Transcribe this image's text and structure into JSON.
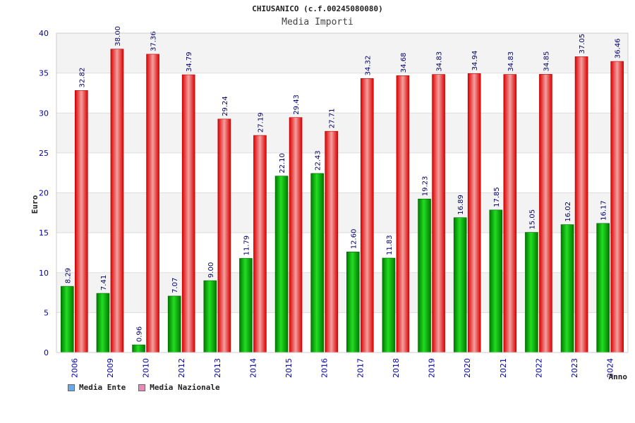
{
  "chart_data": {
    "type": "bar",
    "title": "CHIUSANICO (c.f.00245080080)",
    "subtitle": "Media Importi",
    "ylabel": "Euro",
    "xlabel": "Anno",
    "ylim": [
      0,
      40
    ],
    "yticks": [
      0,
      5,
      10,
      15,
      20,
      25,
      30,
      35,
      40
    ],
    "grid": true,
    "legend_position": "bottom-left",
    "categories": [
      "2006",
      "2009",
      "2010",
      "2012",
      "2013",
      "2014",
      "2015",
      "2016",
      "2017",
      "2018",
      "2019",
      "2020",
      "2021",
      "2022",
      "2023",
      "2024"
    ],
    "series": [
      {
        "name": "Media Ente",
        "color": "#00bb00",
        "legend_color": "#6aa8e8",
        "values": [
          8.29,
          7.41,
          0.96,
          7.07,
          9.0,
          11.79,
          22.1,
          22.43,
          12.6,
          11.83,
          19.23,
          16.89,
          17.85,
          15.05,
          16.02,
          16.17
        ],
        "labels": [
          "8.29",
          "7.41",
          "0.96",
          "7.07",
          "9.00",
          "11.79",
          "22.10",
          "22.43",
          "12.60",
          "11.83",
          "19.23",
          "16.89",
          "17.85",
          "15.05",
          "16.02",
          "16.17"
        ]
      },
      {
        "name": "Media Nazionale",
        "color": "#ee1111",
        "legend_color": "#e68ab8",
        "values": [
          32.82,
          38.0,
          37.36,
          34.79,
          29.24,
          27.19,
          29.43,
          27.71,
          34.32,
          34.68,
          34.83,
          34.94,
          34.83,
          34.85,
          37.05,
          36.46
        ],
        "labels": [
          "32.82",
          "38.00",
          "37.36",
          "34.79",
          "29.24",
          "27.19",
          "29.43",
          "27.71",
          "34.32",
          "34.68",
          "34.83",
          "34.94",
          "34.83",
          "34.85",
          "37.05",
          "36.46"
        ]
      }
    ]
  },
  "colors": {
    "axis_text": "#0000aa",
    "label_text": "#000066",
    "band": "#f3f3f3",
    "grid": "#dddddd"
  }
}
